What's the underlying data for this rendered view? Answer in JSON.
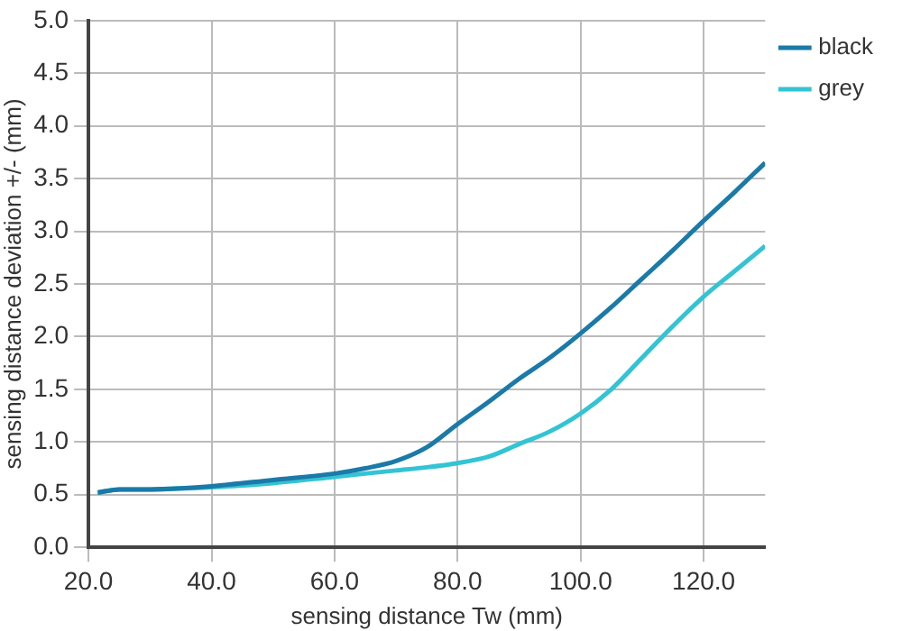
{
  "chart_data": {
    "type": "line",
    "xlabel": "sensing distance Tw (mm)",
    "ylabel": "sensing distance deviation +/- (mm)",
    "xlim": [
      20,
      130
    ],
    "xticks": [
      {
        "value": 20,
        "label": "20.0"
      },
      {
        "value": 40,
        "label": "40.0"
      },
      {
        "value": 60,
        "label": "60.0"
      },
      {
        "value": 80,
        "label": "80.0"
      },
      {
        "value": 100,
        "label": "100.0"
      },
      {
        "value": 120,
        "label": "120.0"
      }
    ],
    "ylim": [
      0,
      5
    ],
    "yticks": [
      {
        "value": 0,
        "label": "0.0"
      },
      {
        "value": 0.5,
        "label": "0.5"
      },
      {
        "value": 1,
        "label": "1.0"
      },
      {
        "value": 1.5,
        "label": "1.5"
      },
      {
        "value": 2,
        "label": "2.0"
      },
      {
        "value": 2.5,
        "label": "2.5"
      },
      {
        "value": 3,
        "label": "3.0"
      },
      {
        "value": 3.5,
        "label": "3.5"
      },
      {
        "value": 4,
        "label": "4.0"
      },
      {
        "value": 4.5,
        "label": "4.5"
      },
      {
        "value": 5,
        "label": "5.0"
      }
    ],
    "x": [
      21.5,
      25,
      30,
      35,
      40,
      50,
      60,
      65,
      70,
      75,
      80,
      85,
      90,
      95,
      100,
      105,
      110,
      115,
      120,
      125,
      130
    ],
    "series": [
      {
        "name": "black",
        "color": "#1a7aa8",
        "values": [
          0.52,
          0.55,
          0.55,
          0.56,
          0.58,
          0.64,
          0.7,
          0.75,
          0.82,
          0.95,
          1.17,
          1.38,
          1.6,
          1.8,
          2.03,
          2.28,
          2.55,
          2.82,
          3.1,
          3.37,
          3.65
        ]
      },
      {
        "name": "grey",
        "color": "#33c4d4",
        "values": [
          0.52,
          0.55,
          0.55,
          0.56,
          0.57,
          0.61,
          0.67,
          0.7,
          0.73,
          0.76,
          0.8,
          0.86,
          0.98,
          1.1,
          1.27,
          1.5,
          1.8,
          2.1,
          2.38,
          2.62,
          2.86
        ]
      }
    ],
    "grid": true,
    "legend": "top right",
    "marker": "none",
    "line_style": "solid"
  }
}
